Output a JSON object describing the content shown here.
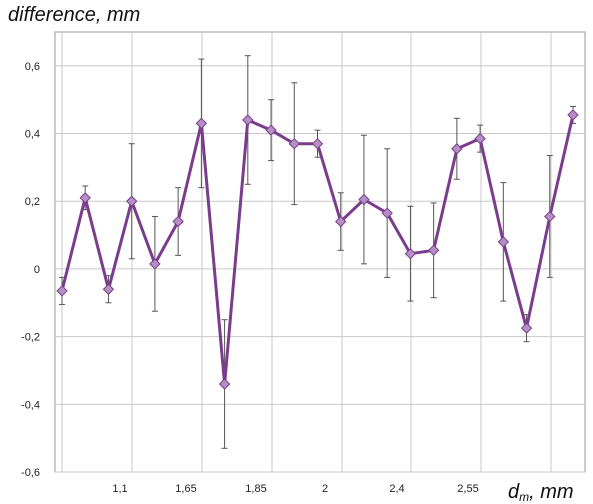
{
  "chart_data": {
    "type": "line",
    "title": "difference, mm",
    "ylabel": "difference, mm",
    "xlabel": "d_m, mm",
    "xlabel_main": "d",
    "xlabel_sub": "m",
    "xlabel_unit": ", mm",
    "ylim": [
      -0.6,
      0.7
    ],
    "yticks": [
      -0.6,
      -0.4,
      -0.2,
      0,
      0.2,
      0.4,
      0.6
    ],
    "ytick_labels": [
      "-0,6",
      "-0,4",
      "-0,2",
      "0",
      "0,2",
      "0,4",
      "0,6"
    ],
    "xtick_labels": [
      "1,1",
      "1,65",
      "1,85",
      "2",
      "2,4",
      "2,55"
    ],
    "grid": true,
    "line_color": "#7a3d8c",
    "marker_color": "#b48fc4",
    "errorbar_color": "#555555",
    "series": [
      {
        "values": [
          -0.065,
          0.21,
          -0.06,
          0.2,
          0.015,
          0.14,
          0.43,
          -0.34,
          0.44,
          0.41,
          0.37,
          0.37,
          0.14,
          0.205,
          0.165,
          0.045,
          0.055,
          0.355,
          0.385,
          0.08,
          -0.175,
          0.155,
          0.455
        ],
        "errors": [
          0.04,
          0.035,
          0.04,
          0.17,
          0.14,
          0.1,
          0.19,
          0.19,
          0.19,
          0.09,
          0.18,
          0.04,
          0.085,
          0.19,
          0.19,
          0.14,
          0.14,
          0.09,
          0.04,
          0.175,
          0.04,
          0.18,
          0.025
        ]
      }
    ]
  }
}
